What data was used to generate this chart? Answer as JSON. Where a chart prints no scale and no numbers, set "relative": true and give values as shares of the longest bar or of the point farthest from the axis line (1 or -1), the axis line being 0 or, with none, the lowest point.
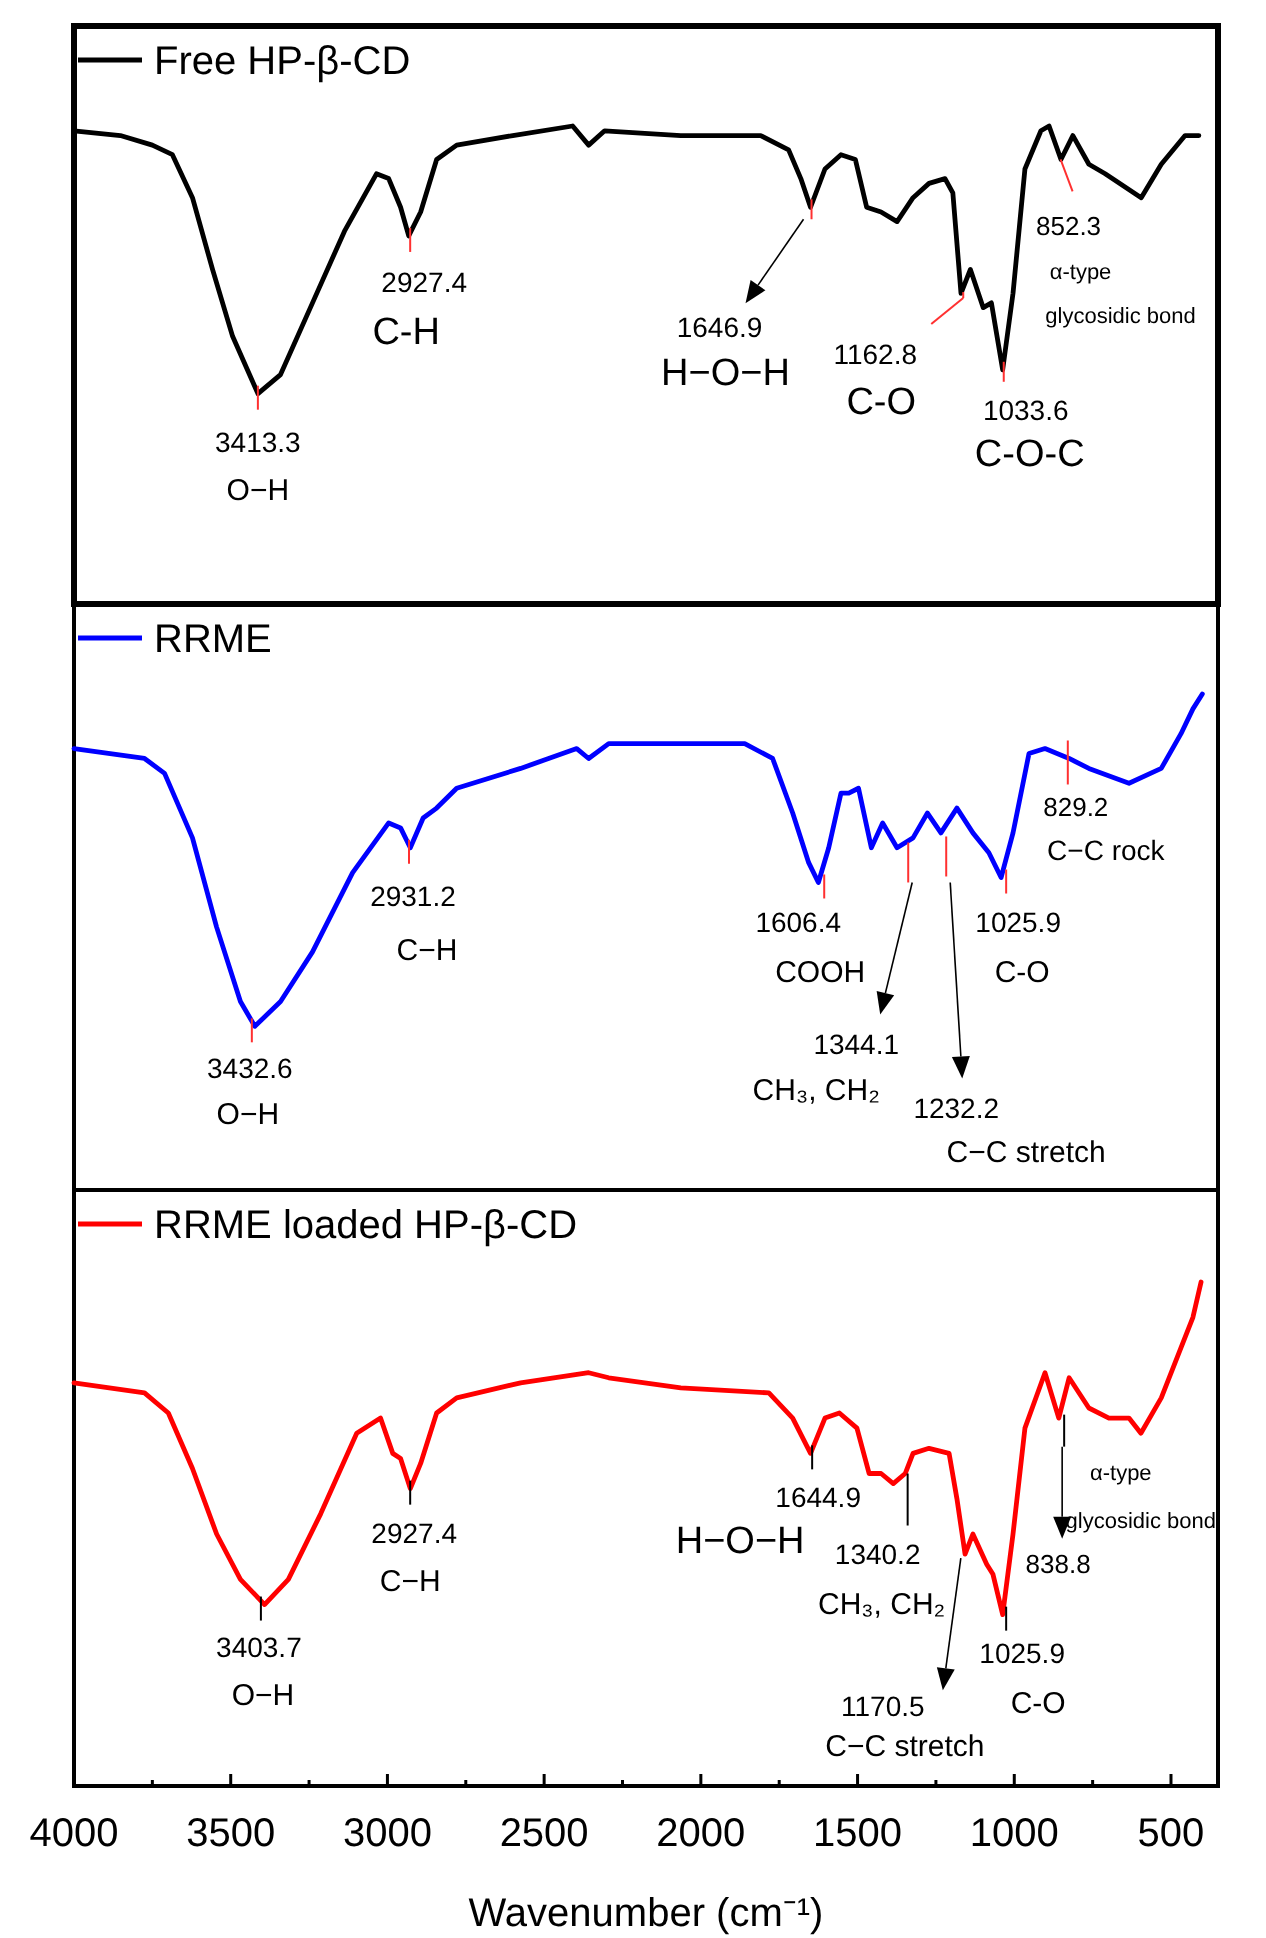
{
  "chart_data": [
    {
      "type": "line",
      "relative": true,
      "xlim": [
        4000,
        350
      ],
      "tick_labels": false,
      "legend": "top left",
      "x": [
        4000,
        3852,
        3750,
        3686,
        3622,
        3558,
        3494,
        3413,
        3341,
        3239,
        3137,
        3035,
        2996,
        2958,
        2932,
        2894,
        2843,
        2779,
        2600,
        2409,
        2358,
        2307,
        2064,
        1809,
        1720,
        1681,
        1650,
        1604,
        1553,
        1507,
        1471,
        1425,
        1374,
        1323,
        1272,
        1221,
        1196,
        1170,
        1140,
        1099,
        1073,
        1037,
        1004,
        966,
        915,
        889,
        851,
        813,
        762,
        710,
        595,
        531,
        455,
        411
      ],
      "series": [
        {
          "name": "Free HP-β-CD",
          "color": "#000000",
          "values": [
            0.99,
            0.98,
            0.96,
            0.94,
            0.85,
            0.7,
            0.56,
            0.44,
            0.48,
            0.63,
            0.78,
            0.9,
            0.89,
            0.83,
            0.77,
            0.82,
            0.93,
            0.96,
            0.98,
            1.0,
            0.96,
            0.99,
            0.98,
            0.98,
            0.95,
            0.89,
            0.83,
            0.91,
            0.94,
            0.93,
            0.83,
            0.82,
            0.8,
            0.85,
            0.88,
            0.89,
            0.86,
            0.65,
            0.7,
            0.62,
            0.63,
            0.49,
            0.65,
            0.91,
            0.99,
            1.0,
            0.93,
            0.98,
            0.92,
            0.9,
            0.85,
            0.92,
            0.98,
            0.98
          ]
        }
      ],
      "annotations": [
        {
          "text": "3413.3",
          "x": 3413.3,
          "y": 0.44
        },
        {
          "text": "O−H",
          "x": 3413.3,
          "y": 0.44
        },
        {
          "text": "2927.4",
          "x": 2927.4,
          "y": 0.77
        },
        {
          "text": "C-H",
          "x": 2927.4,
          "y": 0.77
        },
        {
          "text": "1646.9",
          "x": 1646.9,
          "y": 0.83
        },
        "H−O−H",
        {
          "text": "1162.8",
          "x": 1162.8,
          "y": 0.64
        },
        {
          "text": "C-O",
          "x": 1162.8,
          "y": 0.64
        },
        {
          "text": "1033.6",
          "x": 1033.6,
          "y": 0.49
        },
        {
          "text": "C-O-C",
          "x": 1033.6,
          "y": 0.49
        },
        {
          "text": "852.3",
          "x": 852.3,
          "y": 0.93
        },
        "α-type glycosidic bond"
      ]
    },
    {
      "type": "line",
      "relative": true,
      "xlim": [
        4000,
        350
      ],
      "tick_labels": false,
      "legend": "top left",
      "x": [
        4000,
        3775,
        3711,
        3622,
        3545,
        3469,
        3423,
        3341,
        3239,
        3111,
        2996,
        2958,
        2927,
        2886,
        2843,
        2779,
        2575,
        2396,
        2358,
        2294,
        1860,
        1771,
        1707,
        1656,
        1625,
        1592,
        1553,
        1528,
        1497,
        1456,
        1420,
        1374,
        1323,
        1277,
        1234,
        1183,
        1132,
        1081,
        1042,
        1004,
        953,
        902,
        825,
        762,
        634,
        531,
        468,
        430,
        400
      ],
      "series": [
        {
          "name": "RRME",
          "color": "#0000ff",
          "values": [
            0.89,
            0.87,
            0.84,
            0.71,
            0.53,
            0.38,
            0.33,
            0.38,
            0.48,
            0.64,
            0.74,
            0.73,
            0.69,
            0.75,
            0.77,
            0.81,
            0.85,
            0.89,
            0.87,
            0.9,
            0.9,
            0.87,
            0.76,
            0.66,
            0.62,
            0.69,
            0.8,
            0.8,
            0.81,
            0.69,
            0.74,
            0.69,
            0.71,
            0.76,
            0.72,
            0.77,
            0.72,
            0.68,
            0.63,
            0.72,
            0.88,
            0.89,
            0.87,
            0.85,
            0.82,
            0.85,
            0.92,
            0.97,
            1.0
          ]
        }
      ],
      "annotations": [
        {
          "text": "3432.6",
          "x": 3432.6,
          "y": 0.33
        },
        {
          "text": "O−H",
          "x": 3432.6,
          "y": 0.33
        },
        {
          "text": "2931.2",
          "x": 2931.2,
          "y": 0.69
        },
        {
          "text": "C−H",
          "x": 2931.2,
          "y": 0.69
        },
        {
          "text": "1606.4",
          "x": 1606.4,
          "y": 0.62
        },
        {
          "text": "COOH",
          "x": 1606.4,
          "y": 0.62
        },
        "1344.1",
        "CH₃, CH₂",
        "1232.2",
        "C−C stretch",
        {
          "text": "1025.9",
          "x": 1025.9,
          "y": 0.63
        },
        {
          "text": "C-O",
          "x": 1025.9,
          "y": 0.63
        },
        {
          "text": "829.2",
          "x": 829.2,
          "y": 0.87
        },
        {
          "text": "C−C rock",
          "x": 829.2,
          "y": 0.87
        }
      ]
    },
    {
      "type": "line",
      "relative": true,
      "xlim": [
        4000,
        350
      ],
      "tick_labels": "x",
      "legend": "top left",
      "xlabel": "Wavenumber (cm⁻¹)",
      "xticks": [
        4000,
        {
          "value": 3750,
          "label": null
        },
        3500,
        {
          "value": 3250,
          "label": null
        },
        3000,
        {
          "value": 2750,
          "label": null
        },
        2500,
        {
          "value": 2250,
          "label": null
        },
        2000,
        {
          "value": 1750,
          "label": null
        },
        1500,
        {
          "value": 1250,
          "label": null
        },
        1000,
        {
          "value": 750,
          "label": null
        },
        500
      ],
      "x": [
        4000,
        3775,
        3699,
        3622,
        3545,
        3469,
        3392,
        3316,
        3213,
        3098,
        3022,
        2983,
        2958,
        2927,
        2894,
        2843,
        2779,
        2575,
        2358,
        2294,
        2064,
        1783,
        1707,
        1650,
        1604,
        1558,
        1502,
        1463,
        1425,
        1386,
        1348,
        1323,
        1272,
        1208,
        1183,
        1157,
        1132,
        1088,
        1068,
        1037,
        1004,
        966,
        902,
        858,
        825,
        762,
        698,
        634,
        596,
        531,
        468,
        430,
        404
      ],
      "series": [
        {
          "name": "RRME loaded HP-β-CD",
          "color": "#ff0000",
          "values": [
            0.8,
            0.78,
            0.74,
            0.63,
            0.5,
            0.41,
            0.36,
            0.41,
            0.54,
            0.7,
            0.73,
            0.66,
            0.65,
            0.59,
            0.64,
            0.74,
            0.77,
            0.8,
            0.82,
            0.81,
            0.79,
            0.78,
            0.73,
            0.66,
            0.73,
            0.74,
            0.71,
            0.62,
            0.62,
            0.6,
            0.62,
            0.66,
            0.67,
            0.66,
            0.57,
            0.46,
            0.5,
            0.44,
            0.42,
            0.34,
            0.5,
            0.71,
            0.82,
            0.73,
            0.81,
            0.75,
            0.73,
            0.73,
            0.7,
            0.77,
            0.87,
            0.93,
            1.0
          ]
        }
      ],
      "annotations": [
        {
          "text": "3403.7",
          "x": 3403.7,
          "y": 0.36
        },
        {
          "text": "O−H",
          "x": 3403.7,
          "y": 0.36
        },
        {
          "text": "2927.4",
          "x": 2927.4,
          "y": 0.59
        },
        {
          "text": "C−H",
          "x": 2927.4,
          "y": 0.59
        },
        {
          "text": "1644.9",
          "x": 1644.9,
          "y": 0.66
        },
        {
          "text": "H−O−H",
          "x": 1644.9,
          "y": 0.66
        },
        {
          "text": "1340.2",
          "x": 1340.2,
          "y": 0.62
        },
        "CH₃, CH₂",
        {
          "text": "1170.5",
          "x": 1170.5,
          "y": 0.46
        },
        "C−C stretch",
        {
          "text": "1025.9",
          "x": 1025.9,
          "y": 0.34
        },
        {
          "text": "C-O",
          "x": 1025.9,
          "y": 0.34
        },
        "838.8",
        {
          "text": "α-type glycosidic bond",
          "x": 838.8,
          "y": 0.73
        }
      ]
    }
  ]
}
